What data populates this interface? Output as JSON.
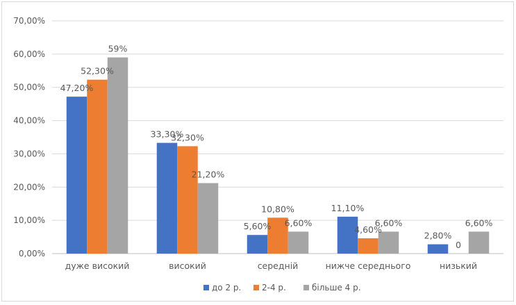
{
  "chart_data": {
    "type": "bar",
    "categories": [
      "дуже високий",
      "високий",
      "середній",
      "нижче середнього",
      "низький"
    ],
    "series": [
      {
        "name": "до 2 р.",
        "color": "#4472C4",
        "values": [
          47.2,
          33.3,
          5.6,
          11.1,
          2.8
        ],
        "labels": [
          "47,20%",
          "33,30%",
          "5,60%",
          "11,10%",
          "2,80%"
        ]
      },
      {
        "name": "2-4 р.",
        "color": "#ED7D31",
        "values": [
          52.3,
          32.3,
          10.8,
          4.6,
          0
        ],
        "labels": [
          "52,30%",
          "32,30%",
          "10,80%",
          "4,60%",
          "0"
        ]
      },
      {
        "name": "більше 4 р.",
        "color": "#A5A5A5",
        "values": [
          59,
          21.2,
          6.6,
          6.6,
          6.6
        ],
        "labels": [
          "59%",
          "21,20%",
          "6,60%",
          "6,60%",
          "6,60%"
        ]
      }
    ],
    "ylim": [
      0,
      70
    ],
    "yticks": [
      0,
      10,
      20,
      30,
      40,
      50,
      60,
      70
    ],
    "ytick_labels": [
      "0,00%",
      "10,00%",
      "20,00%",
      "30,00%",
      "40,00%",
      "50,00%",
      "60,00%",
      "70,00%"
    ],
    "title": "",
    "xlabel": "",
    "ylabel": "",
    "grid": true,
    "gridline_color": "#d9d9d9",
    "legend_position": "bottom"
  }
}
